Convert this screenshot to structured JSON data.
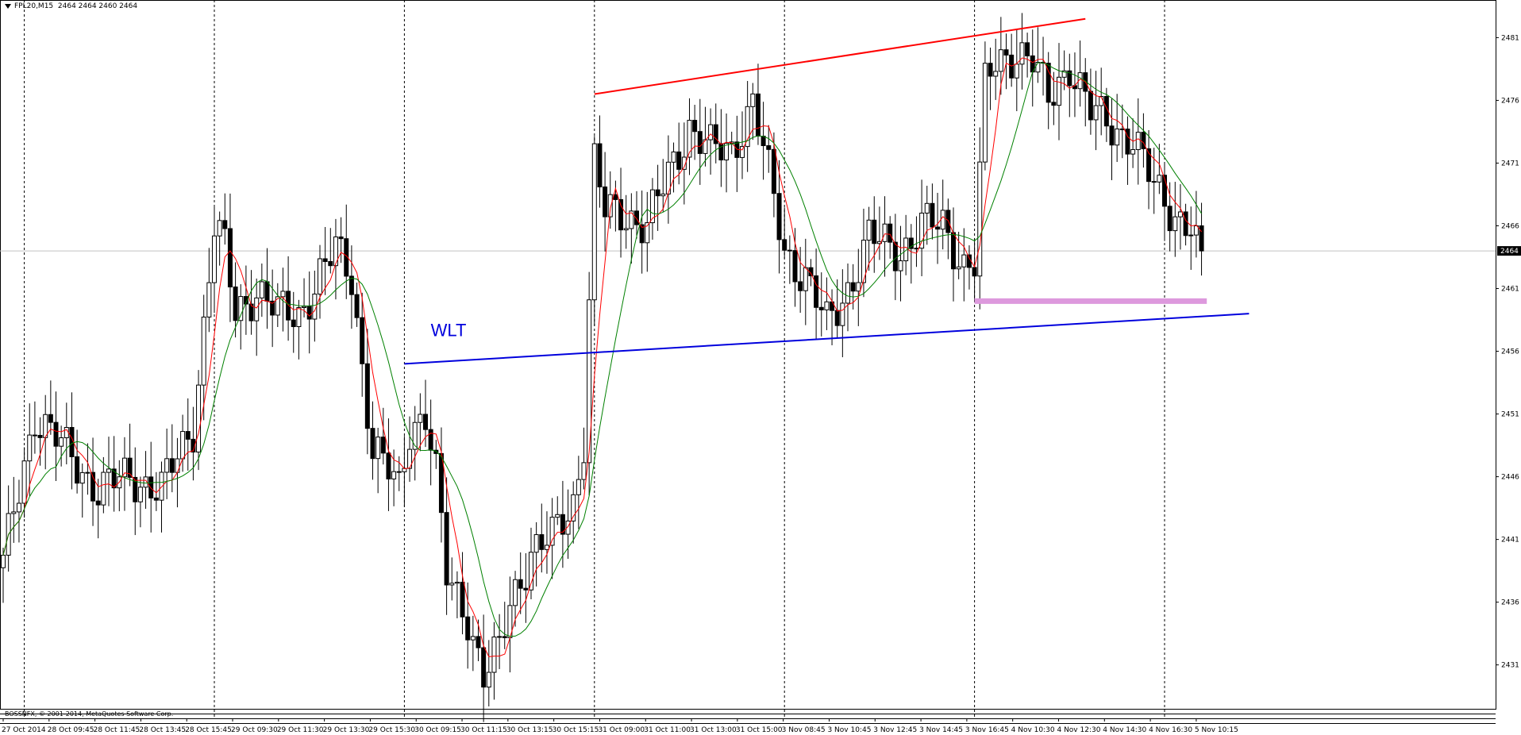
{
  "header": {
    "symbol_label": "FPL20,M15",
    "ohlc": "2464 2464 2460 2464"
  },
  "footer": {
    "copyright": "BOSSNFX, © 2001-2014, MetaQuotes Software Corp."
  },
  "chart_data": {
    "type": "candlestick",
    "symbol": "FPL20",
    "timeframe": "M15",
    "y_range": [
      2427.5,
      2484
    ],
    "y_ticks": [
      "2431",
      "2436",
      "2441",
      "2446",
      "2451",
      "2456",
      "2461",
      "2466",
      "2471",
      "2476",
      "2481"
    ],
    "current_price": "2464",
    "x_tick_labels": [
      "27 Oct 2014",
      "28 Oct 09:45",
      "28 Oct 11:45",
      "28 Oct 13:45",
      "28 Oct 15:45",
      "29 Oct 09:30",
      "29 Oct 11:30",
      "29 Oct 13:30",
      "29 Oct 15:30",
      "30 Oct 09:15",
      "30 Oct 11:15",
      "30 Oct 13:15",
      "30 Oct 15:15",
      "31 Oct 09:00",
      "31 Oct 11:00",
      "31 Oct 13:00",
      "31 Oct 15:00",
      "3 Nov 08:45",
      "3 Nov 10:45",
      "3 Nov 12:45",
      "3 Nov 14:45",
      "3 Nov 16:45",
      "4 Nov 10:30",
      "4 Nov 12:30",
      "4 Nov 14:30",
      "4 Nov 16:30",
      "5 Nov 10:15"
    ],
    "day_separators_bar_index": [
      4,
      40,
      76,
      112,
      148,
      184,
      220
    ],
    "bar_count": 228,
    "close_path_anchors": [
      [
        0,
        2439
      ],
      [
        6,
        2451
      ],
      [
        12,
        2448
      ],
      [
        18,
        2445
      ],
      [
        24,
        2446
      ],
      [
        30,
        2445
      ],
      [
        36,
        2450
      ],
      [
        38,
        2458
      ],
      [
        40,
        2466
      ],
      [
        42,
        2464
      ],
      [
        44,
        2459
      ],
      [
        48,
        2461
      ],
      [
        52,
        2459
      ],
      [
        56,
        2459
      ],
      [
        60,
        2462
      ],
      [
        63,
        2464
      ],
      [
        66,
        2462
      ],
      [
        68,
        2455
      ],
      [
        70,
        2448
      ],
      [
        72,
        2447
      ],
      [
        75,
        2445
      ],
      [
        77,
        2450
      ],
      [
        80,
        2451
      ],
      [
        82,
        2446
      ],
      [
        84,
        2438
      ],
      [
        88,
        2435
      ],
      [
        91,
        2430
      ],
      [
        94,
        2432
      ],
      [
        96,
        2436
      ],
      [
        100,
        2440
      ],
      [
        104,
        2441
      ],
      [
        108,
        2444
      ],
      [
        110,
        2449
      ],
      [
        112,
        2471
      ],
      [
        114,
        2467
      ],
      [
        118,
        2467
      ],
      [
        122,
        2466
      ],
      [
        126,
        2470
      ],
      [
        130,
        2474
      ],
      [
        134,
        2472
      ],
      [
        138,
        2472
      ],
      [
        142,
        2476
      ],
      [
        144,
        2472
      ],
      [
        146,
        2468
      ],
      [
        148,
        2464
      ],
      [
        152,
        2462
      ],
      [
        156,
        2458
      ],
      [
        160,
        2461
      ],
      [
        164,
        2465
      ],
      [
        170,
        2464
      ],
      [
        174,
        2466
      ],
      [
        178,
        2466
      ],
      [
        182,
        2463
      ],
      [
        184,
        2463
      ],
      [
        186,
        2477
      ],
      [
        188,
        2479
      ],
      [
        192,
        2480
      ],
      [
        195,
        2479
      ],
      [
        198,
        2476
      ],
      [
        202,
        2479
      ],
      [
        206,
        2475
      ],
      [
        210,
        2474
      ],
      [
        214,
        2473
      ],
      [
        218,
        2469
      ],
      [
        222,
        2467
      ],
      [
        225,
        2466
      ],
      [
        227,
        2464
      ]
    ],
    "indicators": [
      {
        "type": "moving_average",
        "color": "#ff0000",
        "lag_bars": 2
      },
      {
        "type": "moving_average",
        "color": "#008000",
        "lag_bars": 5
      }
    ],
    "trendlines": [
      {
        "color": "#ff0000",
        "from": [
          112,
          2476.5
        ],
        "to": [
          205,
          2482.5
        ]
      },
      {
        "color": "#0000dd",
        "from": [
          76,
          2455
        ],
        "to": [
          236,
          2459
        ]
      },
      {
        "color": "#dd99dd",
        "from": [
          184,
          2460
        ],
        "to": [
          228,
          2460
        ]
      }
    ],
    "annotations": [
      {
        "text": "WLT",
        "color": "#0000dd"
      }
    ]
  }
}
